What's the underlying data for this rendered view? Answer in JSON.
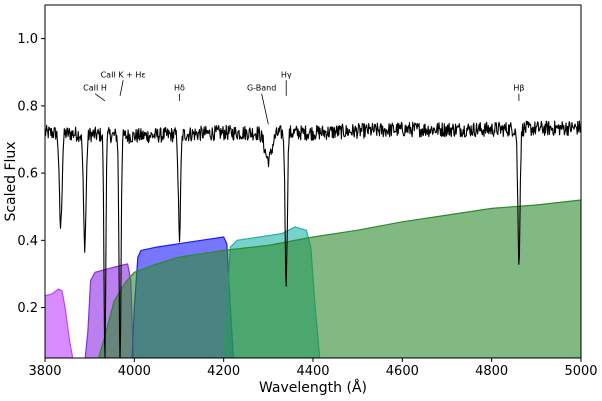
{
  "chart_data": {
    "type": "area",
    "xlabel": "Wavelength (Å)",
    "ylabel": "Scaled Flux",
    "xlim": [
      3800,
      5000
    ],
    "ylim": [
      0.05,
      1.1
    ],
    "xticks": [
      3800,
      4000,
      4200,
      4400,
      4600,
      4800,
      5000
    ],
    "xtick_labels": [
      "3800",
      "4000",
      "4200",
      "4400",
      "4600",
      "4800",
      "5000"
    ],
    "yticks": [
      0.2,
      0.4,
      0.6,
      0.8,
      1.0
    ],
    "ytick_labels": [
      "0.2",
      "0.4",
      "0.6",
      "0.8",
      "1.0"
    ],
    "grid": false,
    "spectrum": {
      "color": "#000000",
      "continuum": [
        [
          3800,
          0.72
        ],
        [
          4000,
          0.71
        ],
        [
          4200,
          0.72
        ],
        [
          4400,
          0.72
        ],
        [
          4600,
          0.73
        ],
        [
          4800,
          0.73
        ],
        [
          5000,
          0.735
        ]
      ],
      "absorption": [
        {
          "center": 3835,
          "depth": 0.28,
          "width": 3
        },
        {
          "center": 3889,
          "depth": 0.33,
          "width": 3
        },
        {
          "center": 3934,
          "depth": 0.67,
          "width": 2
        },
        {
          "center": 3968,
          "depth": 0.67,
          "width": 2.2
        },
        {
          "center": 4101,
          "depth": 0.31,
          "width": 2.5
        },
        {
          "center": 4300,
          "depth": 0.08,
          "width": 8
        },
        {
          "center": 4340,
          "depth": 0.44,
          "width": 2.5
        },
        {
          "center": 4861,
          "depth": 0.39,
          "width": 2.5
        }
      ]
    },
    "filters": [
      {
        "name": "filter-1",
        "color": "#bf40ff",
        "points": [
          [
            3800,
            0.05
          ],
          [
            3800,
            0.235
          ],
          [
            3815,
            0.24
          ],
          [
            3830,
            0.255
          ],
          [
            3838,
            0.25
          ],
          [
            3845,
            0.2
          ],
          [
            3855,
            0.1
          ],
          [
            3862,
            0.05
          ]
        ]
      },
      {
        "name": "filter-2",
        "color": "#8a2be2",
        "points": [
          [
            3890,
            0.05
          ],
          [
            3896,
            0.13
          ],
          [
            3902,
            0.28
          ],
          [
            3912,
            0.305
          ],
          [
            3940,
            0.315
          ],
          [
            3970,
            0.325
          ],
          [
            3985,
            0.33
          ],
          [
            3992,
            0.28
          ],
          [
            3998,
            0.05
          ]
        ]
      },
      {
        "name": "filter-3",
        "color": "#1a1aff",
        "points": [
          [
            3995,
            0.05
          ],
          [
            4000,
            0.2
          ],
          [
            4008,
            0.35
          ],
          [
            4015,
            0.37
          ],
          [
            4050,
            0.38
          ],
          [
            4100,
            0.39
          ],
          [
            4150,
            0.4
          ],
          [
            4200,
            0.41
          ],
          [
            4207,
            0.39
          ],
          [
            4215,
            0.2
          ],
          [
            4222,
            0.05
          ]
        ]
      },
      {
        "name": "filter-4",
        "color": "#20b2aa",
        "points": [
          [
            4200,
            0.05
          ],
          [
            4207,
            0.2
          ],
          [
            4215,
            0.38
          ],
          [
            4230,
            0.4
          ],
          [
            4280,
            0.41
          ],
          [
            4330,
            0.42
          ],
          [
            4360,
            0.44
          ],
          [
            4385,
            0.43
          ],
          [
            4395,
            0.38
          ],
          [
            4405,
            0.2
          ],
          [
            4415,
            0.05
          ]
        ]
      },
      {
        "name": "filter-5",
        "color": "#2e8b2e",
        "points": [
          [
            3920,
            0.05
          ],
          [
            3935,
            0.12
          ],
          [
            3955,
            0.22
          ],
          [
            3980,
            0.275
          ],
          [
            4000,
            0.305
          ],
          [
            4050,
            0.33
          ],
          [
            4100,
            0.35
          ],
          [
            4150,
            0.36
          ],
          [
            4200,
            0.37
          ],
          [
            4300,
            0.385
          ],
          [
            4400,
            0.41
          ],
          [
            4500,
            0.43
          ],
          [
            4600,
            0.455
          ],
          [
            4700,
            0.475
          ],
          [
            4800,
            0.495
          ],
          [
            4900,
            0.505
          ],
          [
            5000,
            0.52
          ],
          [
            5000,
            0.05
          ]
        ]
      }
    ],
    "line_labels": [
      {
        "text": "CaII H",
        "x": 3934,
        "y": 0.815,
        "label_x": 3912,
        "label_y": 0.845
      },
      {
        "text": "CaII K + Hε",
        "x": 3968,
        "y": 0.83,
        "label_x": 3975,
        "label_y": 0.885
      },
      {
        "text": "Hδ",
        "x": 4101,
        "y": 0.815,
        "label_x": 4101,
        "label_y": 0.845
      },
      {
        "text": "G-Band",
        "x": 4300,
        "y": 0.745,
        "label_x": 4285,
        "label_y": 0.845
      },
      {
        "text": "Hγ",
        "x": 4340,
        "y": 0.83,
        "label_x": 4340,
        "label_y": 0.885
      },
      {
        "text": "Hβ",
        "x": 4861,
        "y": 0.815,
        "label_x": 4861,
        "label_y": 0.845
      }
    ]
  }
}
